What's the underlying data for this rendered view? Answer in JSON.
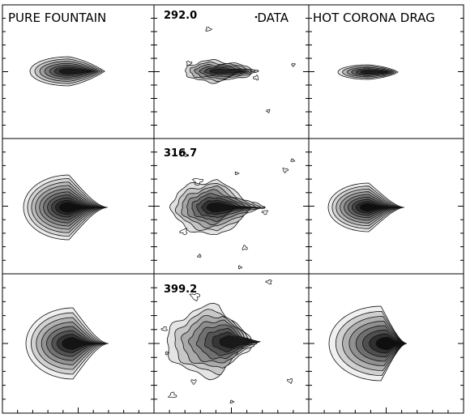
{
  "column_titles": {
    "left": "PURE FOUNTAIN",
    "middle": "DATA",
    "right": "HOT CORONA DRAG"
  },
  "row_labels": [
    "292.0",
    "316.7",
    "399.2"
  ],
  "colors": {
    "contour_line": "#111111",
    "frame": "#000000",
    "core_fill": "#0a0a0a",
    "halo_fill": "#e6e6e6"
  }
}
